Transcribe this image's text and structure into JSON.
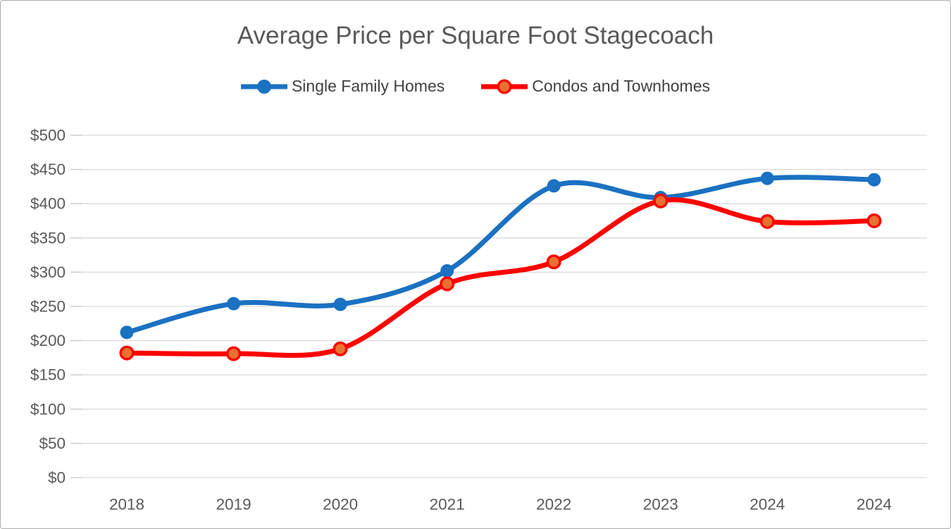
{
  "title": "Average Price per Square Foot Stagecoach",
  "chart_data": {
    "type": "line",
    "title": "Average Price per Square Foot Stagecoach",
    "line_style": "smooth",
    "categories": [
      "2018",
      "2019",
      "2020",
      "2021",
      "2022",
      "2023",
      "2024",
      "2024"
    ],
    "series": [
      {
        "name": "Single Family Homes",
        "color": "#1B71C2",
        "marker_fill": "#1B71C2",
        "marker_style": "circle",
        "values": [
          212,
          254,
          253,
          302,
          426,
          409,
          437,
          435
        ]
      },
      {
        "name": "Condos and Townhomes",
        "color": "#FB0300",
        "marker_fill": "#E97132",
        "marker_style": "circle",
        "values": [
          182,
          181,
          188,
          283,
          315,
          404,
          374,
          375
        ]
      }
    ],
    "ylim": [
      0,
      500
    ],
    "ytick_step": 50,
    "ytick_labels": [
      "$0",
      "$50",
      "$100",
      "$150",
      "$200",
      "$250",
      "$300",
      "$350",
      "$400",
      "$450",
      "$500"
    ],
    "xlabel": "",
    "ylabel": "",
    "grid": true,
    "legend_position": "top"
  },
  "colors": {
    "title_text": "#595959",
    "axis_text": "#595959",
    "legend_text": "#404040",
    "gridline": "#D9D9D9",
    "tick_mark": "#C9C9C9",
    "page_border": "#ABABAB",
    "background": "#FFFFFF"
  }
}
